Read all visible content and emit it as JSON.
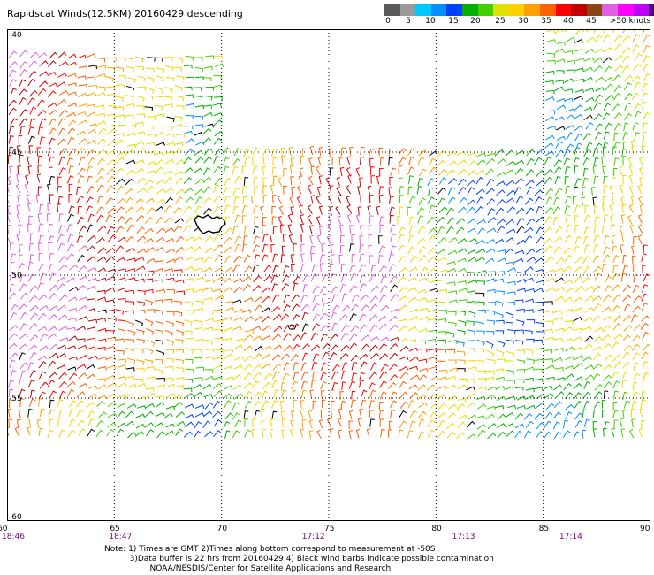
{
  "title": "Rapidscat Winds(12.5KM) 20160429 descending",
  "color_scale": {
    "labels": [
      "0",
      "5",
      "10",
      "15",
      "20",
      "25",
      "30",
      "35",
      "40",
      "45",
      ">50 knots"
    ],
    "colors": [
      "#5a5a5a",
      "#9a9a9a",
      "#00c8ff",
      "#0090ff",
      "#0040ff",
      "#00b000",
      "#40d000",
      "#e0e000",
      "#ffd000",
      "#ffa000",
      "#ff6000",
      "#ff0000",
      "#c00000",
      "#8b4513",
      "#e060e0",
      "#ff00ff",
      "#c000ff",
      "#500080"
    ]
  },
  "axes": {
    "lat_labels": [
      "-40",
      "-45",
      "-50",
      "-55",
      "-60"
    ],
    "lon_labels": [
      "60",
      "65",
      "70",
      "75",
      "80",
      "85",
      "90"
    ],
    "lat_range": [
      -60,
      -40
    ],
    "lon_range": [
      60,
      90
    ]
  },
  "times": [
    {
      "label": "18:46",
      "lon": 60
    },
    {
      "label": "18:47",
      "lon": 65
    },
    {
      "label": "17:12",
      "lon": 74
    },
    {
      "label": "17:13",
      "lon": 81
    },
    {
      "label": "17:14",
      "lon": 86
    }
  ],
  "notes": {
    "line1": "Note: 1) Times are GMT 2)Times along bottom correspond to measurement at -50S",
    "line2": "3)Data buffer is 22 hrs from 20160429 4) Black wind barbs indicate possible contamination",
    "line3": "NOAA/NESDIS/Center for Satellite Applications and Research"
  },
  "swaths": [
    {
      "lon": [
        60,
        70
      ],
      "lat": [
        -57,
        -41
      ]
    },
    {
      "lon": [
        70,
        90
      ],
      "lat": [
        -57,
        -45
      ]
    },
    {
      "lon": [
        85,
        90
      ],
      "lat": [
        -45,
        -40
      ]
    }
  ]
}
